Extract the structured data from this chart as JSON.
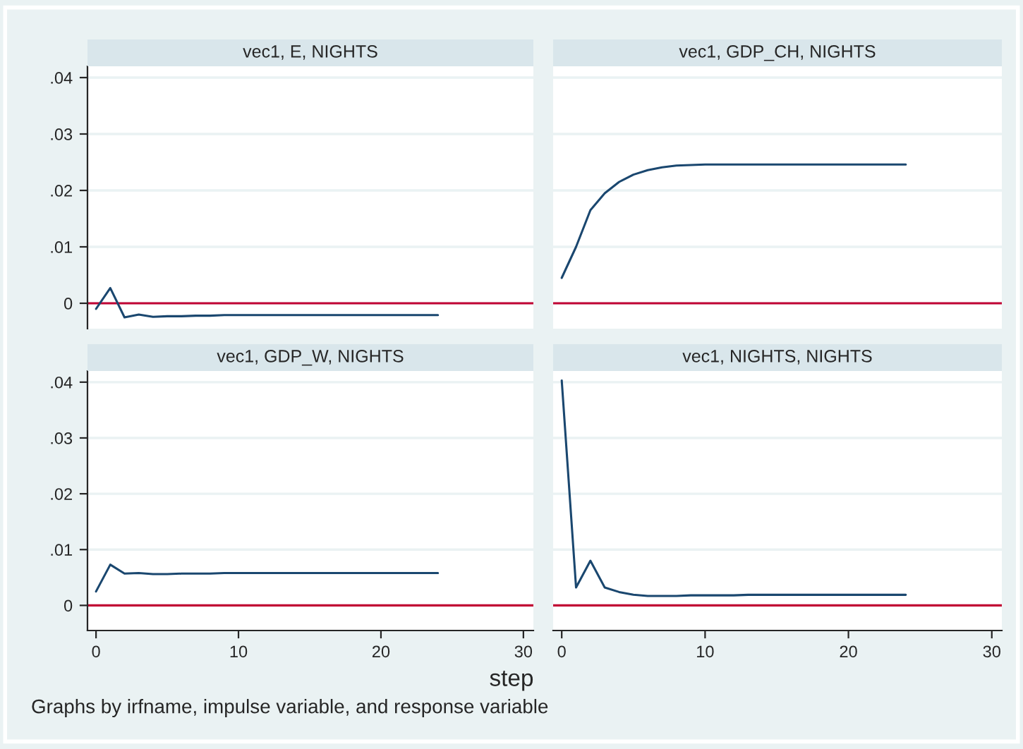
{
  "chart_data": [
    {
      "type": "line",
      "title": "vec1, E, NIGHTS",
      "x": [
        0,
        1,
        2,
        3,
        4,
        5,
        6,
        7,
        8,
        9,
        10,
        11,
        12,
        13,
        14,
        15,
        16,
        17,
        18,
        19,
        20,
        21,
        22,
        23,
        24
      ],
      "series": [
        {
          "color": "#1a476f",
          "values": [
            -0.001,
            0.0027,
            -0.0025,
            -0.002,
            -0.0024,
            -0.0023,
            -0.0023,
            -0.0022,
            -0.0022,
            -0.0021,
            -0.0021,
            -0.0021,
            -0.0021,
            -0.0021,
            -0.0021,
            -0.0021,
            -0.0021,
            -0.0021,
            -0.0021,
            -0.0021,
            -0.0021,
            -0.0021,
            -0.0021,
            -0.0021,
            -0.0021
          ]
        }
      ],
      "xlim": [
        -0.6,
        30.7
      ],
      "ylim": [
        -0.0045,
        0.042
      ],
      "yticks": [
        0,
        {
          "value": 0.01,
          "label": ".01"
        },
        {
          "value": 0.02,
          "label": ".02"
        },
        {
          "value": 0.03,
          "label": ".03"
        },
        {
          "value": 0.04,
          "label": ".04"
        }
      ],
      "ref_lines": [
        {
          "axis": "y",
          "value": 0,
          "color": "#c10534"
        }
      ],
      "grid": "y",
      "tick_labels": "y"
    },
    {
      "type": "line",
      "title": "vec1, GDP_CH, NIGHTS",
      "x": [
        0,
        1,
        2,
        3,
        4,
        5,
        6,
        7,
        8,
        9,
        10,
        11,
        12,
        13,
        14,
        15,
        16,
        17,
        18,
        19,
        20,
        21,
        22,
        23,
        24
      ],
      "series": [
        {
          "color": "#1a476f",
          "values": [
            0.0045,
            0.01,
            0.0165,
            0.0195,
            0.0215,
            0.0228,
            0.0236,
            0.0241,
            0.0244,
            0.0245,
            0.0246,
            0.0246,
            0.0246,
            0.0246,
            0.0246,
            0.0246,
            0.0246,
            0.0246,
            0.0246,
            0.0246,
            0.0246,
            0.0246,
            0.0246,
            0.0246,
            0.0246
          ]
        }
      ],
      "xlim": [
        -0.6,
        30.7
      ],
      "ylim": [
        -0.0045,
        0.042
      ],
      "yticks": [
        {
          "value": 0,
          "label": null
        },
        {
          "value": 0.01,
          "label": null
        },
        {
          "value": 0.02,
          "label": null
        },
        {
          "value": 0.03,
          "label": null
        },
        {
          "value": 0.04,
          "label": null
        }
      ],
      "ref_lines": [
        {
          "axis": "y",
          "value": 0,
          "color": "#c10534"
        }
      ],
      "grid": "y",
      "tick_labels": false
    },
    {
      "type": "line",
      "title": "vec1, GDP_W, NIGHTS",
      "x": [
        0,
        1,
        2,
        3,
        4,
        5,
        6,
        7,
        8,
        9,
        10,
        11,
        12,
        13,
        14,
        15,
        16,
        17,
        18,
        19,
        20,
        21,
        22,
        23,
        24
      ],
      "series": [
        {
          "color": "#1a476f",
          "values": [
            0.0025,
            0.0073,
            0.0057,
            0.0058,
            0.0056,
            0.0056,
            0.0057,
            0.0057,
            0.0057,
            0.0058,
            0.0058,
            0.0058,
            0.0058,
            0.0058,
            0.0058,
            0.0058,
            0.0058,
            0.0058,
            0.0058,
            0.0058,
            0.0058,
            0.0058,
            0.0058,
            0.0058,
            0.0058
          ]
        }
      ],
      "xlim": [
        -0.6,
        30.7
      ],
      "ylim": [
        -0.0045,
        0.042
      ],
      "xticks": [
        0,
        10,
        20,
        30
      ],
      "yticks": [
        0,
        {
          "value": 0.01,
          "label": ".01"
        },
        {
          "value": 0.02,
          "label": ".02"
        },
        {
          "value": 0.03,
          "label": ".03"
        },
        {
          "value": 0.04,
          "label": ".04"
        }
      ],
      "ref_lines": [
        {
          "axis": "y",
          "value": 0,
          "color": "#c10534"
        }
      ],
      "grid": "y"
    },
    {
      "type": "line",
      "title": "vec1, NIGHTS, NIGHTS",
      "x": [
        0,
        1,
        2,
        3,
        4,
        5,
        6,
        7,
        8,
        9,
        10,
        11,
        12,
        13,
        14,
        15,
        16,
        17,
        18,
        19,
        20,
        21,
        22,
        23,
        24
      ],
      "series": [
        {
          "color": "#1a476f",
          "values": [
            0.0403,
            0.0032,
            0.008,
            0.0032,
            0.0024,
            0.0019,
            0.0017,
            0.0017,
            0.0017,
            0.0018,
            0.0018,
            0.0018,
            0.0018,
            0.0019,
            0.0019,
            0.0019,
            0.0019,
            0.0019,
            0.0019,
            0.0019,
            0.0019,
            0.0019,
            0.0019,
            0.0019,
            0.0019
          ]
        }
      ],
      "xlim": [
        -0.6,
        30.7
      ],
      "ylim": [
        -0.0045,
        0.042
      ],
      "xticks": [
        0,
        10,
        20,
        30
      ],
      "yticks": [
        {
          "value": 0,
          "label": null
        },
        {
          "value": 0.01,
          "label": null
        },
        {
          "value": 0.02,
          "label": null
        },
        {
          "value": 0.03,
          "label": null
        },
        {
          "value": 0.04,
          "label": null
        }
      ],
      "ref_lines": [
        {
          "axis": "y",
          "value": 0,
          "color": "#c10534"
        }
      ],
      "grid": "y",
      "tick_labels": "x",
      "xlabel": "step",
      "annotations": [
        "Graphs by irfname, impulse variable, and response variable"
      ]
    }
  ]
}
